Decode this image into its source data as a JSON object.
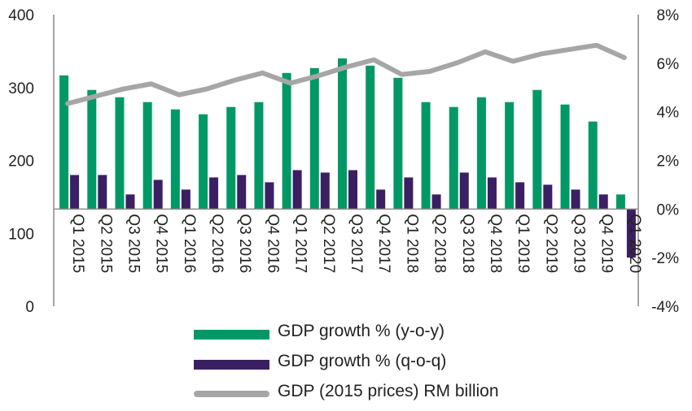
{
  "chart_data": {
    "type": "bar",
    "categories": [
      "Q1 2015",
      "Q2 2015",
      "Q3 2015",
      "Q4 2015",
      "Q1 2016",
      "Q2 2016",
      "Q3 2016",
      "Q4 2016",
      "Q1 2017",
      "Q2 2017",
      "Q3 2017",
      "Q4 2017",
      "Q1 2018",
      "Q2 2018",
      "Q3 2018",
      "Q4 2018",
      "Q1 2019",
      "Q2 2019",
      "Q3 2019",
      "Q4 2019",
      "Q1 2020"
    ],
    "series": [
      {
        "name": "GDP growth % (y-o-y)",
        "type": "bar",
        "axis": "right",
        "color": "#009966",
        "values": [
          5.5,
          4.9,
          4.6,
          4.4,
          4.1,
          3.9,
          4.2,
          4.4,
          5.6,
          5.8,
          6.2,
          5.9,
          5.4,
          4.4,
          4.2,
          4.6,
          4.4,
          4.9,
          4.3,
          3.6,
          0.6
        ]
      },
      {
        "name": "GDP growth % (q-o-q)",
        "type": "bar",
        "axis": "right",
        "color": "#3b1f63",
        "values": [
          1.4,
          1.4,
          0.6,
          1.2,
          0.8,
          1.3,
          1.4,
          1.1,
          1.6,
          1.5,
          1.6,
          0.8,
          1.3,
          0.6,
          1.5,
          1.3,
          1.1,
          1.0,
          0.8,
          0.6,
          -2.0
        ]
      },
      {
        "name": "GDP (2015 prices) RM billion",
        "type": "line",
        "axis": "left",
        "color": "#a6a6a6",
        "values": [
          278,
          288,
          298,
          305,
          290,
          298,
          310,
          320,
          306,
          316,
          328,
          338,
          318,
          322,
          334,
          349,
          336,
          346,
          352,
          358,
          341
        ]
      }
    ],
    "y_left": {
      "ylim": [
        0,
        400
      ],
      "ticks": [
        "0",
        "100",
        "200",
        "300",
        "400"
      ]
    },
    "y_right": {
      "ylim": [
        -4,
        8
      ],
      "ticks": [
        "-4%",
        "-2%",
        "0%",
        "2%",
        "4%",
        "6%",
        "8%"
      ]
    },
    "grid": false,
    "legend_position": "bottom"
  }
}
